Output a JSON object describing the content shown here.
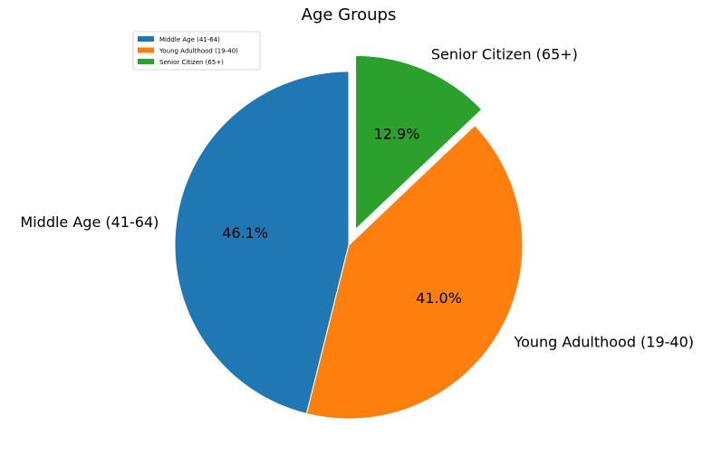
{
  "chart_data": {
    "type": "pie",
    "title": "Age Groups",
    "slices": [
      {
        "label": "Middle Age (41-64)",
        "value": 46.1,
        "pct_label": "46.1%",
        "color": "#1f77b4",
        "explode": 0
      },
      {
        "label": "Young Adulthood (19-40)",
        "value": 41.0,
        "pct_label": "41.0%",
        "color": "#ff7f0e",
        "explode": 0
      },
      {
        "label": "Senior Citizen (65+)",
        "value": 12.9,
        "pct_label": "12.9%",
        "color": "#2ca02c",
        "explode": 0.1
      }
    ],
    "start_angle_deg": 90,
    "direction": "counterclockwise",
    "legend": {
      "placement": "top-left",
      "entries": [
        "Middle Age (41-64)",
        "Young Adulthood (19-40)",
        "Senior Citizen (65+)"
      ]
    }
  }
}
